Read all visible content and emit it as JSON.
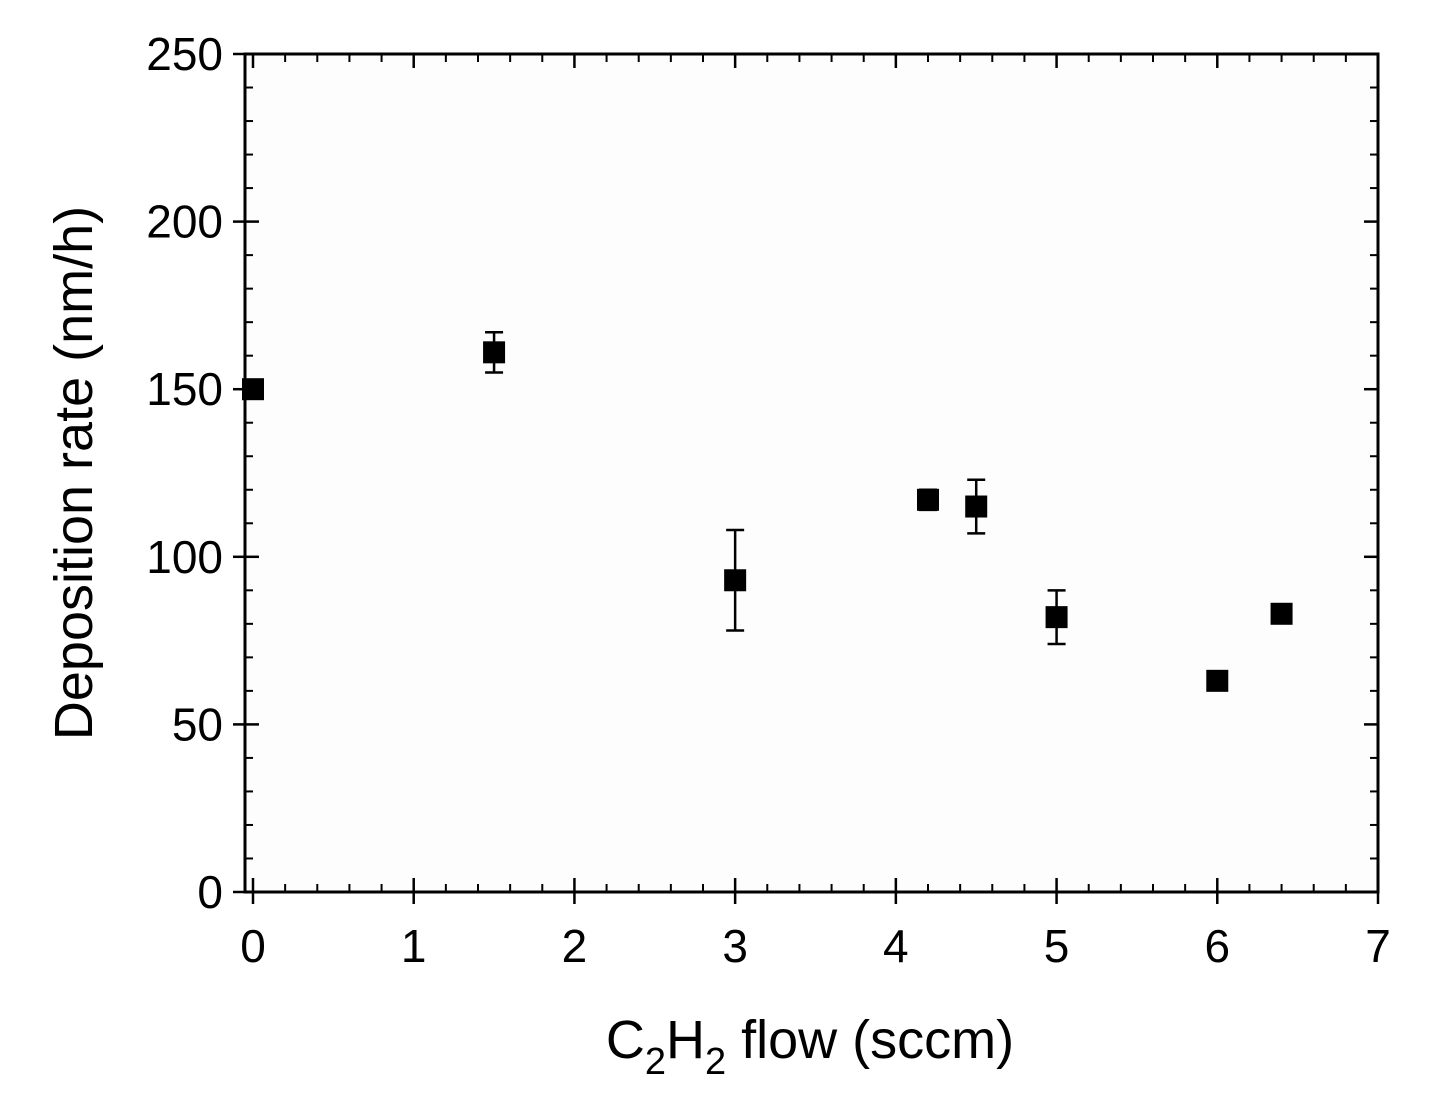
{
  "chart_data": {
    "type": "scatter",
    "xlabel_parts": {
      "c": "C",
      "sub1": "2",
      "h": "H",
      "sub2": "2",
      "rest": " flow (sccm)"
    },
    "ylabel": "Deposition rate (nm/h)",
    "xlim": [
      0,
      7
    ],
    "ylim": [
      0,
      250
    ],
    "xticks": [
      0,
      1,
      2,
      3,
      4,
      5,
      6,
      7
    ],
    "yticks": [
      0,
      50,
      100,
      150,
      200,
      250
    ],
    "grid": false,
    "marker": "square",
    "color": "#000000",
    "points": [
      {
        "x": 0.0,
        "y": 150,
        "err": 0
      },
      {
        "x": 1.5,
        "y": 161,
        "err": 6
      },
      {
        "x": 3.0,
        "y": 93,
        "err": 15
      },
      {
        "x": 4.2,
        "y": 117,
        "err": 3
      },
      {
        "x": 4.5,
        "y": 115,
        "err": 8
      },
      {
        "x": 5.0,
        "y": 82,
        "err": 8
      },
      {
        "x": 6.0,
        "y": 63,
        "err": 2
      },
      {
        "x": 6.4,
        "y": 83,
        "err": 2
      }
    ]
  }
}
